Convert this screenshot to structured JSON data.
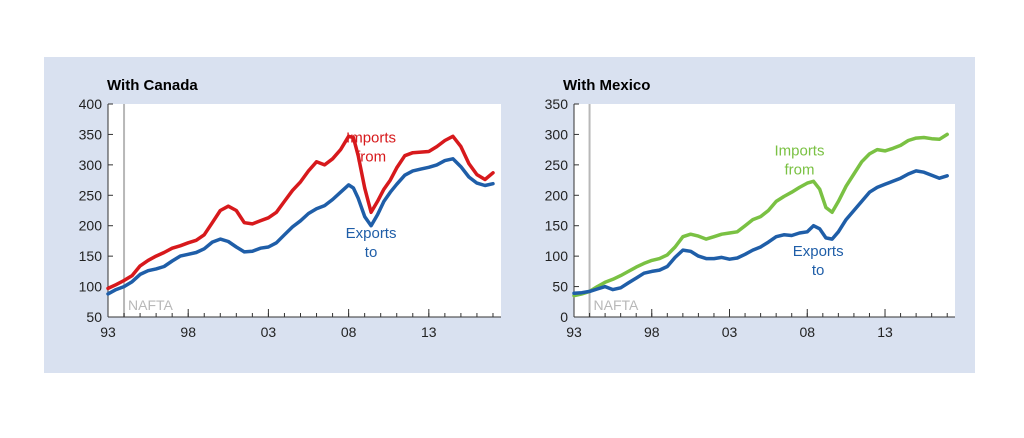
{
  "chart_data": [
    {
      "type": "line",
      "title": "With Canada",
      "xlabel": "",
      "ylabel": "",
      "ylim": [
        50,
        400
      ],
      "yticks": [
        50,
        100,
        150,
        200,
        250,
        300,
        350,
        400
      ],
      "xlim": [
        1993,
        2017.5
      ],
      "xtick_labels": [
        "93",
        "98",
        "03",
        "08",
        "13"
      ],
      "xtick_values": [
        1993,
        1998,
        2003,
        2008,
        2013
      ],
      "marker": {
        "x": 1994,
        "label": "NAFTA",
        "color": "#b8b8b8"
      },
      "grid": false,
      "series": [
        {
          "name": "Imports from",
          "color": "#d7191c",
          "x": [
            1993,
            1993.5,
            1994,
            1994.5,
            1995,
            1995.5,
            1996,
            1996.5,
            1997,
            1997.5,
            1998,
            1998.5,
            1999,
            1999.5,
            2000,
            2000.5,
            2001,
            2001.5,
            2002,
            2002.5,
            2003,
            2003.5,
            2004,
            2004.5,
            2005,
            2005.5,
            2006,
            2006.5,
            2007,
            2007.5,
            2008,
            2008.3,
            2008.6,
            2009,
            2009.4,
            2009.8,
            2010.2,
            2010.6,
            2011,
            2011.5,
            2012,
            2012.5,
            2013,
            2013.5,
            2014,
            2014.5,
            2015,
            2015.5,
            2016,
            2016.5,
            2017
          ],
          "values": [
            97,
            103,
            110,
            118,
            134,
            143,
            150,
            156,
            163,
            167,
            172,
            176,
            185,
            205,
            225,
            232,
            225,
            205,
            203,
            208,
            213,
            222,
            240,
            258,
            272,
            290,
            305,
            300,
            310,
            325,
            347,
            345,
            315,
            262,
            222,
            240,
            260,
            275,
            295,
            315,
            320,
            321,
            322,
            330,
            340,
            347,
            330,
            302,
            284,
            276,
            287
          ]
        },
        {
          "name": "Exports to",
          "color": "#1f5ea8",
          "x": [
            1993,
            1993.5,
            1994,
            1994.5,
            1995,
            1995.5,
            1996,
            1996.5,
            1997,
            1997.5,
            1998,
            1998.5,
            1999,
            1999.5,
            2000,
            2000.5,
            2001,
            2001.5,
            2002,
            2002.5,
            2003,
            2003.5,
            2004,
            2004.5,
            2005,
            2005.5,
            2006,
            2006.5,
            2007,
            2007.5,
            2008,
            2008.3,
            2008.6,
            2009,
            2009.4,
            2009.8,
            2010.2,
            2010.6,
            2011,
            2011.5,
            2012,
            2012.5,
            2013,
            2013.5,
            2014,
            2014.5,
            2015,
            2015.5,
            2016,
            2016.5,
            2017
          ],
          "values": [
            88,
            95,
            100,
            108,
            120,
            126,
            129,
            133,
            142,
            150,
            153,
            156,
            162,
            173,
            178,
            174,
            165,
            157,
            158,
            163,
            165,
            172,
            185,
            198,
            208,
            220,
            228,
            233,
            243,
            255,
            267,
            262,
            245,
            215,
            200,
            218,
            240,
            255,
            268,
            283,
            290,
            293,
            296,
            300,
            307,
            310,
            297,
            280,
            270,
            266,
            269
          ]
        }
      ],
      "annotations": [
        {
          "lines": [
            "Imports",
            "from"
          ],
          "x": 2009.4,
          "y": 337,
          "color": "#d7191c"
        },
        {
          "lines": [
            "Exports",
            "to"
          ],
          "x": 2009.4,
          "y": 180,
          "color": "#1f5ea8"
        }
      ]
    },
    {
      "type": "line",
      "title": "With Mexico",
      "xlabel": "",
      "ylabel": "",
      "ylim": [
        0,
        350
      ],
      "yticks": [
        0,
        50,
        100,
        150,
        200,
        250,
        300,
        350
      ],
      "xlim": [
        1993,
        2017.5
      ],
      "xtick_labels": [
        "93",
        "98",
        "03",
        "08",
        "13"
      ],
      "xtick_values": [
        1993,
        1998,
        2003,
        2008,
        2013
      ],
      "marker": {
        "x": 1994,
        "label": "NAFTA",
        "color": "#b8b8b8"
      },
      "grid": false,
      "series": [
        {
          "name": "Imports from",
          "color": "#7ac143",
          "x": [
            1993,
            1993.5,
            1994,
            1994.5,
            1995,
            1995.5,
            1996,
            1996.5,
            1997,
            1997.5,
            1998,
            1998.5,
            1999,
            1999.5,
            2000,
            2000.5,
            2001,
            2001.5,
            2002,
            2002.5,
            2003,
            2003.5,
            2004,
            2004.5,
            2005,
            2005.5,
            2006,
            2006.5,
            2007,
            2007.5,
            2008,
            2008.4,
            2008.8,
            2009.2,
            2009.6,
            2010,
            2010.5,
            2011,
            2011.5,
            2012,
            2012.5,
            2013,
            2013.5,
            2014,
            2014.5,
            2015,
            2015.5,
            2016,
            2016.5,
            2017
          ],
          "values": [
            35,
            38,
            42,
            50,
            57,
            62,
            68,
            75,
            82,
            88,
            93,
            96,
            102,
            115,
            132,
            136,
            133,
            128,
            132,
            136,
            138,
            140,
            150,
            160,
            165,
            175,
            190,
            198,
            205,
            213,
            220,
            223,
            210,
            180,
            172,
            190,
            215,
            235,
            255,
            268,
            275,
            273,
            277,
            282,
            290,
            294,
            295,
            293,
            292,
            300
          ]
        },
        {
          "name": "Exports to",
          "color": "#1f5ea8",
          "x": [
            1993,
            1993.5,
            1994,
            1994.5,
            1995,
            1995.5,
            1996,
            1996.5,
            1997,
            1997.5,
            1998,
            1998.5,
            1999,
            1999.5,
            2000,
            2000.5,
            2001,
            2001.5,
            2002,
            2002.5,
            2003,
            2003.5,
            2004,
            2004.5,
            2005,
            2005.5,
            2006,
            2006.5,
            2007,
            2007.5,
            2008,
            2008.4,
            2008.8,
            2009.2,
            2009.6,
            2010,
            2010.5,
            2011,
            2011.5,
            2012,
            2012.5,
            2013,
            2013.5,
            2014,
            2014.5,
            2015,
            2015.5,
            2016,
            2016.5,
            2017
          ],
          "values": [
            39,
            40,
            42,
            46,
            50,
            45,
            48,
            56,
            64,
            72,
            75,
            77,
            83,
            98,
            110,
            108,
            100,
            96,
            96,
            98,
            95,
            97,
            103,
            110,
            115,
            123,
            132,
            135,
            134,
            138,
            140,
            150,
            145,
            130,
            128,
            140,
            160,
            175,
            190,
            205,
            213,
            218,
            223,
            228,
            235,
            240,
            238,
            233,
            228,
            232
          ]
        }
      ],
      "annotations": [
        {
          "lines": [
            "Imports",
            "from"
          ],
          "x": 2007.5,
          "y": 265,
          "color": "#7ac143"
        },
        {
          "lines": [
            "Exports",
            "to"
          ],
          "x": 2008.7,
          "y": 100,
          "color": "#1f5ea8"
        }
      ]
    }
  ]
}
